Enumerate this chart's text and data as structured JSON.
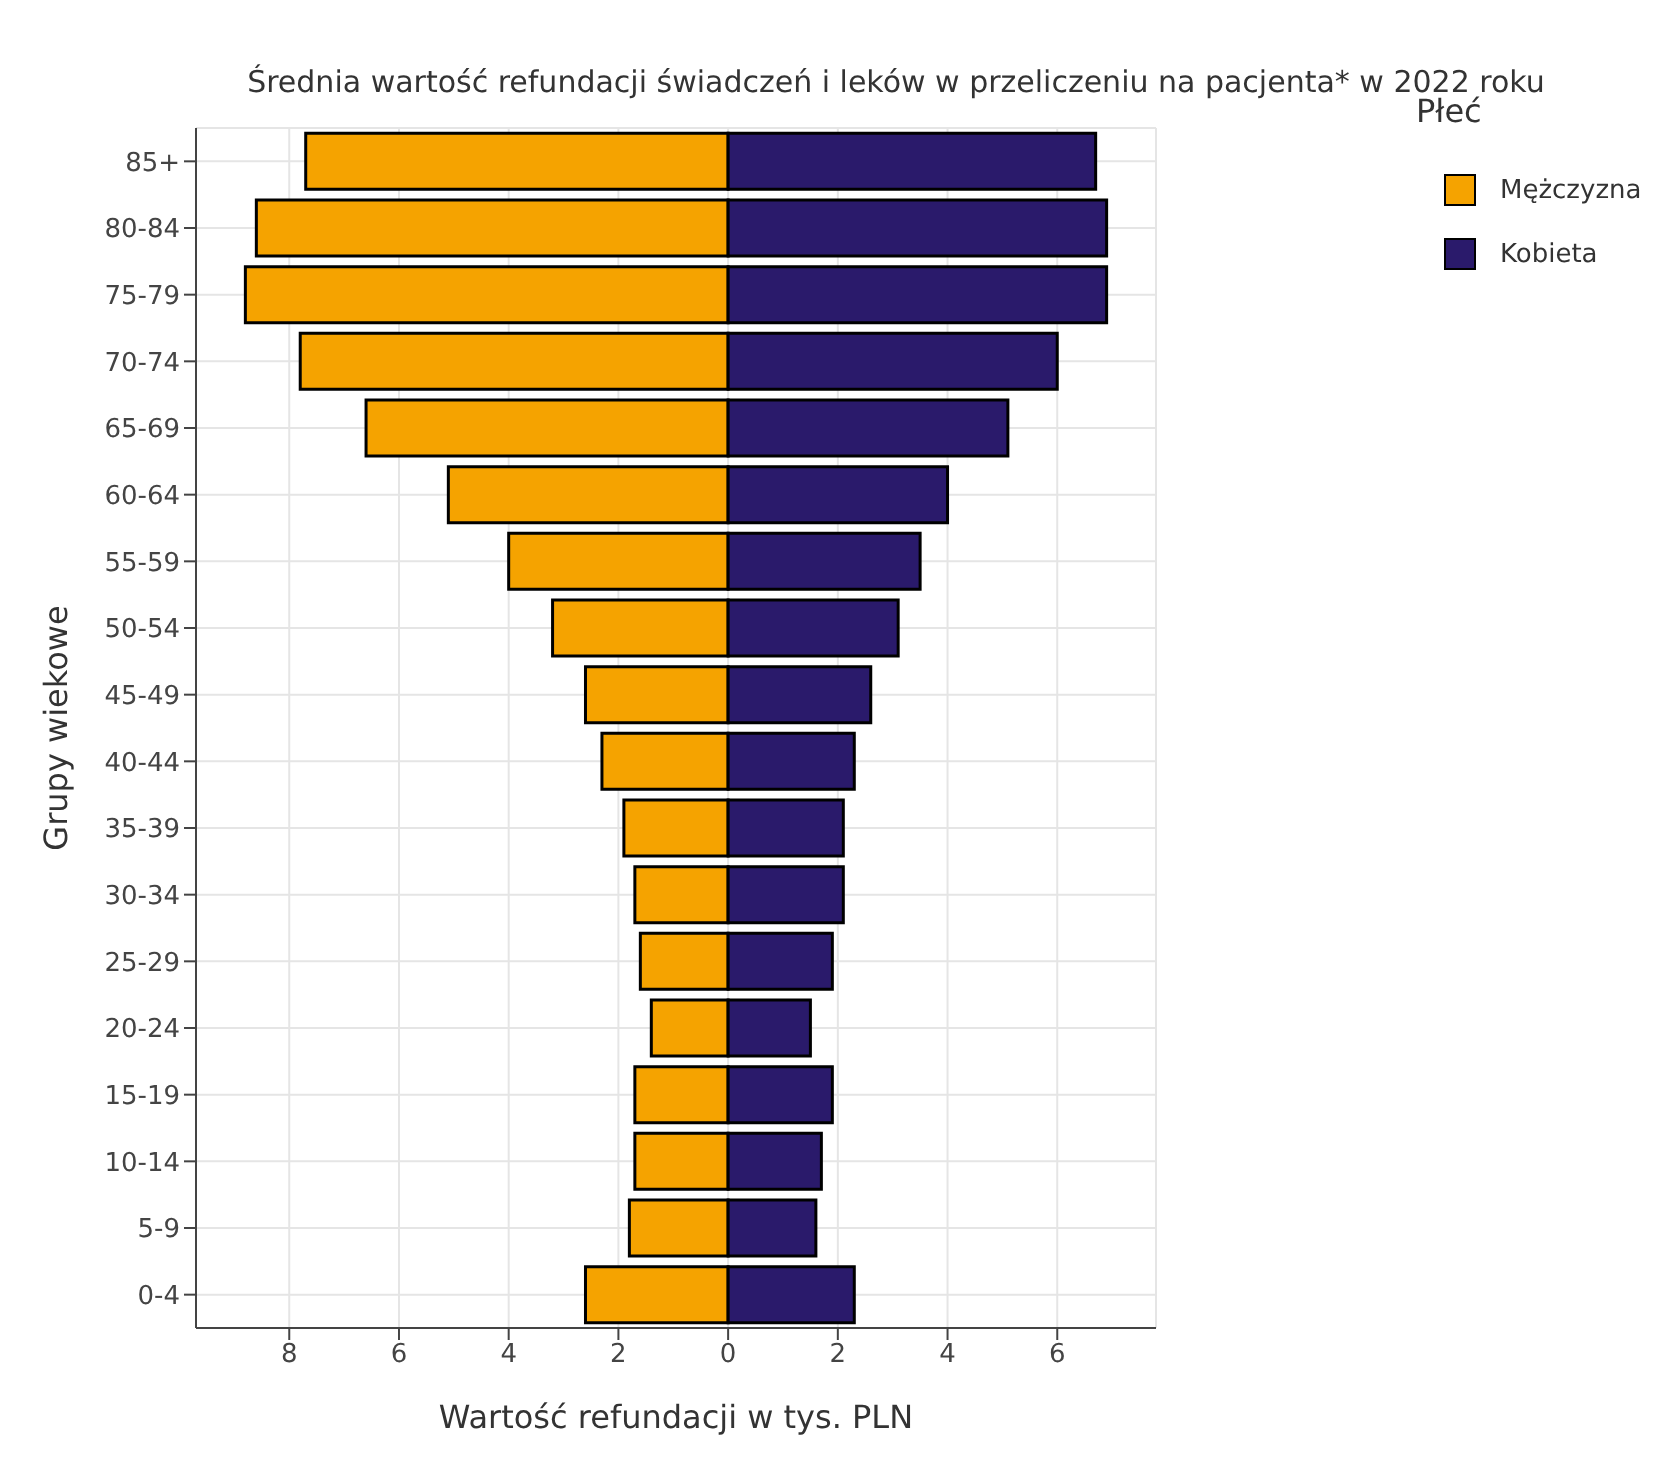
{
  "chart_data": {
    "type": "bar",
    "orientation": "horizontal",
    "stacked": true,
    "title": "Średnia wartość refundacji świadczeń i leków w przeliczeniu na pacjenta* w 2022 roku",
    "xlabel": "Wartość refundacji w tys. PLN",
    "ylabel": "Grupy wiekowe",
    "legend_title": "Płeć",
    "legend": "top right",
    "grid": true,
    "categories": [
      "85+",
      "80-84",
      "75-79",
      "70-74",
      "65-69",
      "60-64",
      "55-59",
      "50-54",
      "45-49",
      "40-44",
      "35-39",
      "30-34",
      "25-29",
      "20-24",
      "15-19",
      "10-14",
      "5-9",
      "0-4"
    ],
    "series": [
      {
        "name": "Mężczyzna",
        "color": "#f5a300",
        "values": [
          -7.7,
          -8.6,
          -8.8,
          -7.8,
          -6.6,
          -5.1,
          -4.0,
          -3.2,
          -2.6,
          -2.3,
          -1.9,
          -1.7,
          -1.6,
          -1.4,
          -1.7,
          -1.7,
          -1.8,
          -2.6
        ]
      },
      {
        "name": "Kobieta",
        "color": "#2a1a6b",
        "values": [
          6.7,
          6.9,
          6.9,
          6.0,
          5.1,
          4.0,
          3.5,
          3.1,
          2.6,
          2.3,
          2.1,
          2.1,
          1.9,
          1.5,
          1.9,
          1.7,
          1.6,
          2.3
        ]
      }
    ],
    "xlim": [
      -9.7,
      7.8
    ],
    "xticks": [
      {
        "value": -8,
        "label": "8"
      },
      {
        "value": -6,
        "label": "6"
      },
      {
        "value": -4,
        "label": "4"
      },
      {
        "value": -2,
        "label": "2"
      },
      0,
      2,
      4,
      6
    ]
  }
}
